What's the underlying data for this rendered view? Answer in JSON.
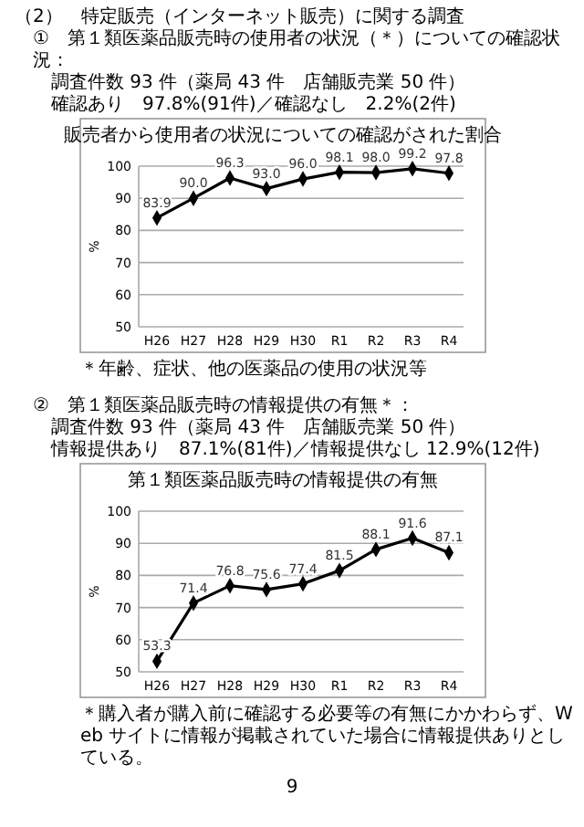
{
  "chart_data": [
    {
      "type": "line",
      "title": "販売者から使用者の状況についての確認がされた割合",
      "ylabel": "%",
      "categories": [
        "H26",
        "H27",
        "H28",
        "H29",
        "H30",
        "R1",
        "R2",
        "R3",
        "R4"
      ],
      "series": [
        {
          "color": "#000000",
          "values": [
            83.9,
            90.0,
            96.3,
            93.0,
            96.0,
            98.1,
            98.0,
            99.2,
            97.8
          ],
          "value_labels": [
            "83.9",
            "90.0",
            "96.3",
            "93.0",
            "96.0",
            "98.1",
            "98.0",
            "99.2",
            "97.8"
          ]
        }
      ],
      "ylim": [
        50,
        100
      ],
      "yticks": [
        50,
        60,
        70,
        80,
        90,
        100
      ],
      "grid": "y",
      "marker": "diamond",
      "annotations": [
        "（2）　特定販売（インターネット販売）に関する調査",
        "①　第１類医薬品販売時の使用者の状況（＊）についての確認状況：",
        "調査件数 93 件（薬局 43 件　店舗販売業 50 件）",
        "確認あり　97.8%(91件)／確認なし　2.2%(2件)",
        "＊年齢、症状、他の医薬品の使用の状況等"
      ]
    },
    {
      "type": "line",
      "title": "第１類医薬品販売時の情報提供の有無",
      "ylabel": "%",
      "categories": [
        "H26",
        "H27",
        "H28",
        "H29",
        "H30",
        "R1",
        "R2",
        "R3",
        "R4"
      ],
      "series": [
        {
          "color": "#000000",
          "values": [
            53.3,
            71.4,
            76.8,
            75.6,
            77.4,
            81.5,
            88.1,
            91.6,
            87.1
          ],
          "value_labels": [
            "53.3",
            "71.4",
            "76.8",
            "75.6",
            "77.4",
            "81.5",
            "88.1",
            "91.6",
            "87.1"
          ]
        }
      ],
      "ylim": [
        50,
        100
      ],
      "yticks": [
        50,
        60,
        70,
        80,
        90,
        100
      ],
      "grid": "y",
      "marker": "diamond",
      "annotations": [
        "②　第１類医薬品販売時の情報提供の有無＊：",
        "調査件数 93 件（薬局 43 件　店舗販売業 50 件）",
        "情報提供あり　87.1%(81件)／情報提供なし 12.9%(12件)",
        "＊購入者が購入前に確認する必要等の有無にかかわらず、Web サイトに情報が掲載されていた場合に情報提供ありとしている。",
        "9"
      ]
    }
  ]
}
